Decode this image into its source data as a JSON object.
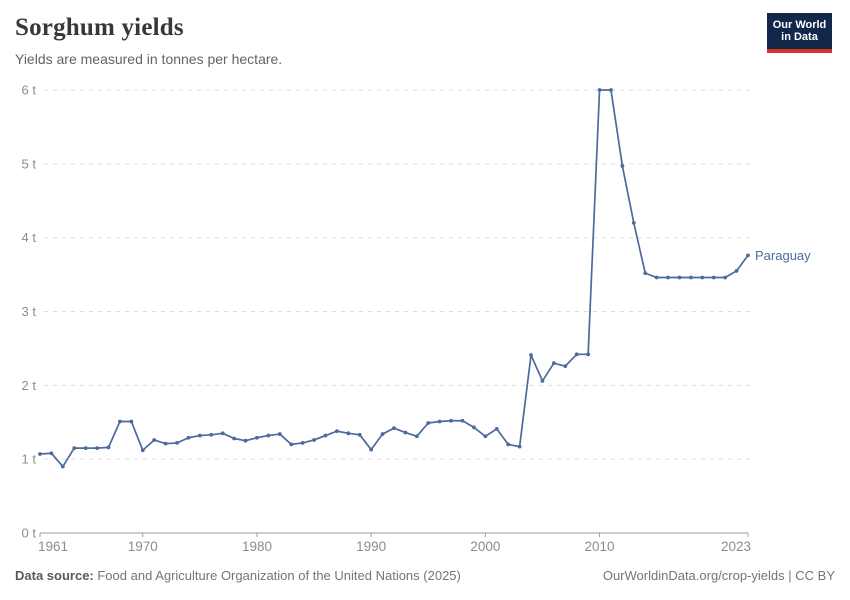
{
  "header": {
    "title": "Sorghum yields",
    "subtitle": "Yields are measured in tonnes per hectare.",
    "logo": {
      "line1": "Our World",
      "line2": "in Data"
    }
  },
  "footer": {
    "source_label": "Data source:",
    "source_text": " Food and Agriculture Organization of the United Nations (2025)",
    "credit": "OurWorldinData.org/crop-yields | CC BY"
  },
  "colors": {
    "line": "#4C6A9C",
    "grid": "#dcdcdc",
    "axis": "#9e9e9e",
    "tick_text": "#8c8c8c",
    "logo_bg": "#12284B",
    "logo_red": "#D7332E"
  },
  "chart_data": {
    "type": "line",
    "title": "Sorghum yields",
    "subtitle": "Yields are measured in tonnes per hectare.",
    "unit": "tonnes per hectare",
    "xlim": [
      1961,
      2023
    ],
    "ylim": [
      0,
      6
    ],
    "grid": "horizontal dashed",
    "legend_position": "end-of-line label",
    "xticks": [
      1961,
      1970,
      1980,
      1990,
      2000,
      2010,
      2023
    ],
    "yticks": [
      0,
      1,
      2,
      3,
      4,
      5,
      6
    ],
    "ytick_labels": [
      "0 t",
      "1 t",
      "2 t",
      "3 t",
      "4 t",
      "5 t",
      "6 t"
    ],
    "series": [
      {
        "name": "Paraguay",
        "color": "#4C6A9C",
        "x": [
          1961,
          1962,
          1963,
          1964,
          1965,
          1966,
          1967,
          1968,
          1969,
          1970,
          1971,
          1972,
          1973,
          1974,
          1975,
          1976,
          1977,
          1978,
          1979,
          1980,
          1981,
          1982,
          1983,
          1984,
          1985,
          1986,
          1987,
          1988,
          1989,
          1990,
          1991,
          1992,
          1993,
          1994,
          1995,
          1996,
          1997,
          1998,
          1999,
          2000,
          2001,
          2002,
          2003,
          2004,
          2005,
          2006,
          2007,
          2008,
          2009,
          2010,
          2011,
          2012,
          2013,
          2014,
          2015,
          2016,
          2017,
          2018,
          2019,
          2020,
          2021,
          2022,
          2023
        ],
        "values": [
          1.07,
          1.08,
          0.9,
          1.15,
          1.15,
          1.15,
          1.16,
          1.51,
          1.51,
          1.12,
          1.26,
          1.21,
          1.22,
          1.29,
          1.32,
          1.33,
          1.35,
          1.28,
          1.25,
          1.29,
          1.32,
          1.34,
          1.2,
          1.22,
          1.26,
          1.32,
          1.38,
          1.35,
          1.33,
          1.13,
          1.34,
          1.42,
          1.36,
          1.31,
          1.49,
          1.51,
          1.52,
          1.52,
          1.43,
          1.31,
          1.41,
          1.2,
          1.17,
          2.41,
          2.06,
          2.3,
          2.26,
          2.42,
          2.42,
          6.0,
          6.0,
          4.97,
          4.2,
          3.52,
          3.46,
          3.46,
          3.46,
          3.46,
          3.46,
          3.46,
          3.46,
          3.55,
          3.76
        ]
      }
    ],
    "entity_label": "Paraguay"
  }
}
